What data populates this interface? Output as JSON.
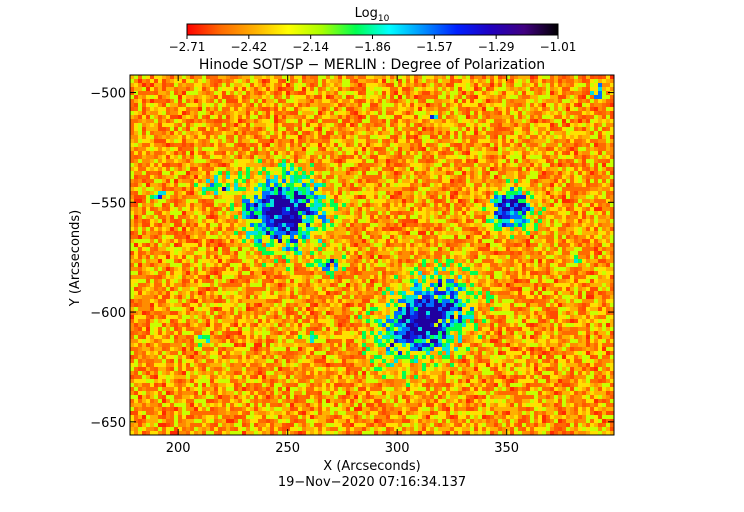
{
  "colorbar": {
    "title_main": "Log",
    "title_sub": "10",
    "tick_labels": [
      "−2.71",
      "−2.42",
      "−2.14",
      "−1.86",
      "−1.57",
      "−1.29",
      "−1.01"
    ],
    "colors": [
      "#ff0000",
      "#ff6a00",
      "#ffb000",
      "#ffff00",
      "#a8ff00",
      "#00ff50",
      "#00ffff",
      "#0090ff",
      "#0020ff",
      "#2000c0",
      "#400080",
      "#000000"
    ]
  },
  "chart_data": {
    "type": "heatmap",
    "title": "Hinode SOT/SP − MERLIN : Degree of Polarization",
    "xlabel": "X (Arcseconds)",
    "ylabel": "Y (Arcseconds)",
    "xlim": [
      178,
      399
    ],
    "ylim": [
      -656,
      -492
    ],
    "x_ticks": [
      200,
      250,
      300,
      350
    ],
    "y_ticks": [
      -500,
      -550,
      -600,
      -650
    ],
    "x_tick_labels": [
      "200",
      "250",
      "300",
      "350"
    ],
    "y_tick_labels": [
      "−500",
      "−550",
      "−600",
      "−650"
    ],
    "value_range": [
      -2.71,
      -1.01
    ],
    "value_label": "Log10",
    "features": [
      {
        "x": 248,
        "y": -554,
        "level": "high"
      },
      {
        "x": 352,
        "y": -553,
        "level": "high"
      },
      {
        "x": 313,
        "y": -603,
        "level": "high"
      }
    ]
  },
  "timestamp": "19−Nov−2020 07:16:34.137"
}
